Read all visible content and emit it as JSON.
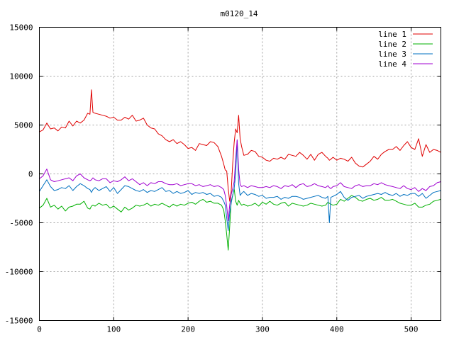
{
  "chart_data": {
    "type": "line",
    "title": "m0120_14",
    "xlabel": "",
    "ylabel": "",
    "xlim": [
      0,
      540
    ],
    "ylim": [
      -15000,
      15000
    ],
    "xticks": [
      0,
      100,
      200,
      300,
      400,
      500
    ],
    "yticks": [
      -15000,
      -10000,
      -5000,
      0,
      5000,
      10000,
      15000
    ],
    "grid": true,
    "legend_position": "top-right",
    "x": [
      0,
      5,
      10,
      15,
      20,
      25,
      30,
      35,
      40,
      45,
      50,
      55,
      60,
      65,
      68,
      70,
      72,
      75,
      80,
      85,
      90,
      95,
      100,
      105,
      110,
      115,
      120,
      125,
      130,
      135,
      140,
      145,
      150,
      155,
      160,
      165,
      170,
      175,
      180,
      185,
      190,
      195,
      200,
      205,
      210,
      215,
      220,
      225,
      230,
      235,
      240,
      245,
      248,
      250,
      252,
      254,
      256,
      258,
      260,
      262,
      264,
      266,
      268,
      270,
      272,
      275,
      280,
      285,
      290,
      295,
      300,
      305,
      310,
      315,
      320,
      325,
      330,
      335,
      340,
      345,
      350,
      355,
      360,
      365,
      370,
      375,
      380,
      385,
      388,
      390,
      392,
      395,
      400,
      405,
      410,
      415,
      420,
      425,
      430,
      435,
      440,
      445,
      450,
      455,
      460,
      465,
      470,
      475,
      480,
      485,
      490,
      495,
      500,
      505,
      510,
      515,
      520,
      525,
      530,
      535,
      540
    ],
    "series": [
      {
        "name": "line 1",
        "color": "#e00000",
        "values": [
          4300,
          4500,
          5200,
          4600,
          4700,
          4400,
          4800,
          4700,
          5400,
          4900,
          5400,
          5200,
          5500,
          6200,
          6100,
          8600,
          6300,
          6200,
          6100,
          6000,
          5900,
          5700,
          5800,
          5500,
          5500,
          5800,
          5600,
          6000,
          5400,
          5500,
          5700,
          5000,
          4700,
          4600,
          4100,
          3900,
          3500,
          3300,
          3500,
          3100,
          3300,
          3000,
          2600,
          2700,
          2400,
          3100,
          3000,
          2900,
          3300,
          3200,
          2800,
          1800,
          1000,
          400,
          300,
          -1500,
          -2800,
          -1800,
          1000,
          3200,
          4600,
          4200,
          6000,
          3600,
          2800,
          1900,
          2000,
          2400,
          2300,
          1800,
          1700,
          1400,
          1300,
          1600,
          1500,
          1700,
          1500,
          2000,
          1900,
          1800,
          2200,
          1900,
          1500,
          2000,
          1400,
          2000,
          2200,
          1800,
          1600,
          1400,
          1500,
          1700,
          1400,
          1600,
          1500,
          1300,
          1700,
          1100,
          800,
          700,
          1000,
          1300,
          1800,
          1500,
          2000,
          2300,
          2500,
          2500,
          2800,
          2400,
          2900,
          3300,
          2700,
          2500,
          3600,
          1800,
          3000,
          2200,
          2500,
          2400,
          2200
        ]
      },
      {
        "name": "line 2",
        "color": "#00b000",
        "values": [
          -3500,
          -3200,
          -2500,
          -3400,
          -3200,
          -3600,
          -3300,
          -3800,
          -3400,
          -3300,
          -3100,
          -3100,
          -2800,
          -3500,
          -3600,
          -3300,
          -3200,
          -3300,
          -3000,
          -3200,
          -3100,
          -3500,
          -3300,
          -3600,
          -3900,
          -3400,
          -3700,
          -3500,
          -3200,
          -3300,
          -3200,
          -3000,
          -3300,
          -3100,
          -3200,
          -3000,
          -3200,
          -3400,
          -3100,
          -3300,
          -3100,
          -3200,
          -3000,
          -2900,
          -3100,
          -2800,
          -2600,
          -2900,
          -2800,
          -3000,
          -3000,
          -3200,
          -3700,
          -4800,
          -6200,
          -7800,
          -5400,
          -2800,
          -2200,
          -1500,
          -2800,
          -3200,
          -2700,
          -3000,
          -3200,
          -3100,
          -3300,
          -3200,
          -3000,
          -3300,
          -2900,
          -3100,
          -2800,
          -3100,
          -3200,
          -3000,
          -2900,
          -3300,
          -3000,
          -3100,
          -3200,
          -3300,
          -3200,
          -3000,
          -3100,
          -3200,
          -3300,
          -3200,
          -2900,
          -3000,
          -3100,
          -3200,
          -3100,
          -2600,
          -2800,
          -2500,
          -2200,
          -2400,
          -2700,
          -2800,
          -2600,
          -2500,
          -2700,
          -2600,
          -2400,
          -2700,
          -2700,
          -2600,
          -2800,
          -3000,
          -3100,
          -3200,
          -3200,
          -3000,
          -3400,
          -3400,
          -3200,
          -3100,
          -2800,
          -2700,
          -2600
        ]
      },
      {
        "name": "line 3",
        "color": "#0070c0",
        "values": [
          -1800,
          -1200,
          -600,
          -1300,
          -1700,
          -1600,
          -1400,
          -1500,
          -1200,
          -1700,
          -1300,
          -1000,
          -1200,
          -1500,
          -1600,
          -1900,
          -1600,
          -1400,
          -1700,
          -1500,
          -1300,
          -1800,
          -1400,
          -2000,
          -1600,
          -1200,
          -1300,
          -1500,
          -1700,
          -1800,
          -1600,
          -1900,
          -1700,
          -1800,
          -1600,
          -1400,
          -1800,
          -1700,
          -2000,
          -1800,
          -2000,
          -1900,
          -1700,
          -2100,
          -1900,
          -2000,
          -1900,
          -2100,
          -2000,
          -2300,
          -2200,
          -2400,
          -2800,
          -3200,
          -4500,
          -5800,
          -4000,
          -3000,
          -2200,
          -1500,
          0,
          3400,
          -1000,
          -2200,
          -2000,
          -1800,
          -2200,
          -2000,
          -2100,
          -2300,
          -2200,
          -2500,
          -2400,
          -2400,
          -2300,
          -2600,
          -2400,
          -2500,
          -2300,
          -2300,
          -2400,
          -2600,
          -2500,
          -2400,
          -2300,
          -2200,
          -2400,
          -2500,
          -2300,
          -5000,
          -2400,
          -2300,
          -2100,
          -1800,
          -2400,
          -2700,
          -2400,
          -2300,
          -2200,
          -2500,
          -2300,
          -2200,
          -2100,
          -2000,
          -2100,
          -1900,
          -2100,
          -2200,
          -2000,
          -2300,
          -2100,
          -2200,
          -2000,
          -2000,
          -2300,
          -2000,
          -2500,
          -2200,
          -1900,
          -1800,
          -1700
        ]
      },
      {
        "name": "line 4",
        "color": "#a000d0",
        "values": [
          -500,
          -200,
          500,
          -600,
          -800,
          -700,
          -600,
          -500,
          -400,
          -700,
          -200,
          0,
          -400,
          -600,
          -700,
          -600,
          -400,
          -600,
          -700,
          -500,
          -500,
          -900,
          -700,
          -800,
          -600,
          -300,
          -700,
          -500,
          -800,
          -1100,
          -900,
          -1200,
          -900,
          -1000,
          -800,
          -800,
          -1000,
          -1100,
          -1100,
          -1000,
          -1200,
          -1100,
          -1000,
          -1000,
          -1200,
          -1100,
          -1300,
          -1200,
          -1100,
          -1300,
          -1200,
          -1400,
          -1600,
          -2200,
          -3300,
          -4800,
          -3200,
          -2100,
          -1500,
          -800,
          1500,
          3500,
          500,
          -1100,
          -1300,
          -1200,
          -1400,
          -1200,
          -1300,
          -1400,
          -1400,
          -1300,
          -1400,
          -1200,
          -1300,
          -1500,
          -1200,
          -1300,
          -1100,
          -1400,
          -1100,
          -1000,
          -1300,
          -1200,
          -1000,
          -1200,
          -1300,
          -1400,
          -1200,
          -1400,
          -1500,
          -1300,
          -1200,
          -900,
          -1300,
          -1400,
          -1500,
          -1200,
          -1100,
          -1300,
          -1200,
          -1200,
          -1000,
          -1100,
          -900,
          -1100,
          -1200,
          -1300,
          -1400,
          -1500,
          -1200,
          -1500,
          -1600,
          -1400,
          -1800,
          -1500,
          -1700,
          -1300,
          -1200,
          -900,
          -800
        ]
      }
    ]
  }
}
